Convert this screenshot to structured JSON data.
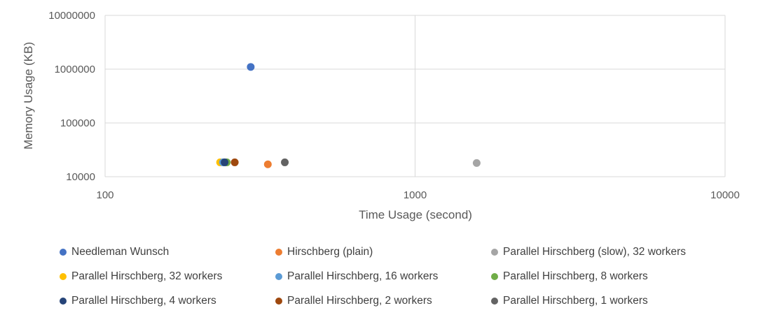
{
  "chart_data": {
    "type": "scatter",
    "title": "",
    "xlabel": "Time Usage (second)",
    "ylabel": "Memory Usage (KB)",
    "x_scale": "log",
    "y_scale": "log",
    "xlim": [
      100,
      10000
    ],
    "ylim": [
      10000,
      10000000
    ],
    "x_ticks": [
      "100",
      "1000",
      "10000"
    ],
    "y_ticks": [
      "10000",
      "100000",
      "1000000",
      "10000000"
    ],
    "grid": true,
    "legend_position": "bottom",
    "series": [
      {
        "name": "Needleman Wunsch",
        "color": "#4472C4",
        "points": [
          {
            "x": 295,
            "y": 1100000
          }
        ]
      },
      {
        "name": "Hirschberg (plain)",
        "color": "#ED7D31",
        "points": [
          {
            "x": 335,
            "y": 17000
          }
        ]
      },
      {
        "name": "Parallel Hirschberg (slow), 32 workers",
        "color": "#A5A5A5",
        "points": [
          {
            "x": 1580,
            "y": 18000
          }
        ]
      },
      {
        "name": "Parallel Hirschberg, 32 workers",
        "color": "#FFC000",
        "points": [
          {
            "x": 235,
            "y": 18500
          }
        ]
      },
      {
        "name": "Parallel Hirschberg, 16 workers",
        "color": "#5B9BD5",
        "points": [
          {
            "x": 240,
            "y": 18500
          }
        ]
      },
      {
        "name": "Parallel Hirschberg, 8 workers",
        "color": "#70AD47",
        "points": [
          {
            "x": 247,
            "y": 18500
          }
        ]
      },
      {
        "name": "Parallel Hirschberg, 4 workers",
        "color": "#264478",
        "points": [
          {
            "x": 243,
            "y": 18500
          }
        ]
      },
      {
        "name": "Parallel Hirschberg, 2 workers",
        "color": "#9E480E",
        "points": [
          {
            "x": 262,
            "y": 18500
          }
        ]
      },
      {
        "name": "Parallel Hirschberg, 1 workers",
        "color": "#636363",
        "points": [
          {
            "x": 380,
            "y": 18500
          }
        ]
      }
    ]
  }
}
